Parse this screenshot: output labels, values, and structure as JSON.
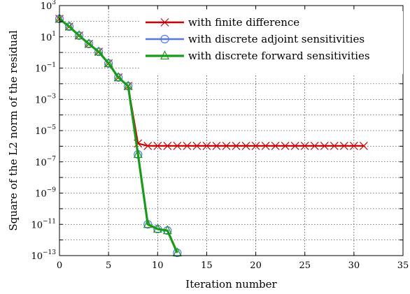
{
  "chart_data": {
    "type": "line",
    "xlabel": "Iteration number",
    "ylabel": "Square of the L2 norm of the residual",
    "xlim": [
      0,
      35
    ],
    "ylim": [
      1e-13,
      1000.0
    ],
    "yscale": "log",
    "grid": true,
    "legend_placement": "top-right",
    "xticks": [
      0,
      5,
      10,
      15,
      20,
      25,
      30,
      35
    ],
    "yticks": [
      {
        "exp": 3,
        "label": "10",
        "sup": "3"
      },
      {
        "exp": 1,
        "label": "10",
        "sup": "1"
      },
      {
        "exp": -1,
        "label": "10",
        "sup": "−1"
      },
      {
        "exp": -3,
        "label": "10",
        "sup": "−3"
      },
      {
        "exp": -5,
        "label": "10",
        "sup": "−5"
      },
      {
        "exp": -7,
        "label": "10",
        "sup": "−7"
      },
      {
        "exp": -9,
        "label": "10",
        "sup": "−9"
      },
      {
        "exp": -11,
        "label": "10",
        "sup": "−11"
      },
      {
        "exp": -13,
        "label": "10",
        "sup": "−13"
      }
    ],
    "series": [
      {
        "name": "with finite difference",
        "color": "#cc0000",
        "marker": "x",
        "x": [
          0,
          1,
          2,
          3,
          4,
          5,
          6,
          7,
          8,
          9,
          10,
          11,
          12,
          13,
          14,
          15,
          16,
          17,
          18,
          19,
          20,
          21,
          22,
          23,
          24,
          25,
          26,
          27,
          28,
          29,
          30,
          31
        ],
        "y": [
          140,
          45,
          12,
          3.5,
          1.1,
          0.2,
          0.025,
          0.007,
          1.5e-06,
          1.05e-06,
          1.05e-06,
          1.05e-06,
          1.05e-06,
          1.05e-06,
          1.05e-06,
          1.05e-06,
          1.05e-06,
          1.05e-06,
          1.05e-06,
          1.05e-06,
          1.05e-06,
          1.05e-06,
          1.05e-06,
          1.05e-06,
          1.05e-06,
          1.05e-06,
          1.05e-06,
          1.05e-06,
          1.05e-06,
          1.05e-06,
          1.05e-06,
          1.05e-06
        ]
      },
      {
        "name": "with discrete adjoint sensitivities",
        "color": "#5577ee",
        "marker": "o",
        "x": [
          0,
          1,
          2,
          3,
          4,
          5,
          6,
          7,
          8,
          9,
          10,
          11,
          12
        ],
        "y": [
          140,
          45,
          12,
          3.5,
          1.1,
          0.2,
          0.025,
          0.007,
          3e-07,
          1e-11,
          5e-12,
          4e-12,
          1.5e-13
        ]
      },
      {
        "name": "with discrete forward sensitivities",
        "color": "#1a9a1a",
        "marker": "^",
        "x": [
          0,
          1,
          2,
          3,
          4,
          5,
          6,
          7,
          8,
          9,
          10,
          11,
          12
        ],
        "y": [
          140,
          45,
          12,
          3.5,
          1.1,
          0.2,
          0.025,
          0.007,
          3e-07,
          1e-11,
          5e-12,
          4e-12,
          1.5e-13
        ]
      }
    ]
  }
}
